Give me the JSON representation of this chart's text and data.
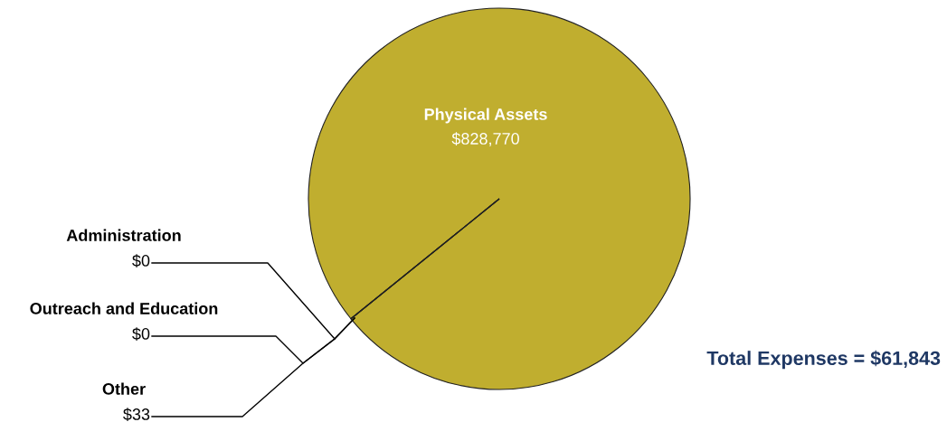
{
  "chart_data": {
    "type": "pie",
    "categories": [
      "Physical Assets",
      "Administration",
      "Outreach and Education",
      "Other"
    ],
    "values": [
      828770,
      0,
      0,
      33
    ],
    "value_labels": [
      "$828,770",
      "$0",
      "$0",
      "$33"
    ],
    "colors": [
      "#c0ae2f",
      "#9bbb59",
      "#8064a2",
      "#4f81bd"
    ],
    "annotations": [
      "Total Expenses = $61,843"
    ],
    "legend": false
  }
}
